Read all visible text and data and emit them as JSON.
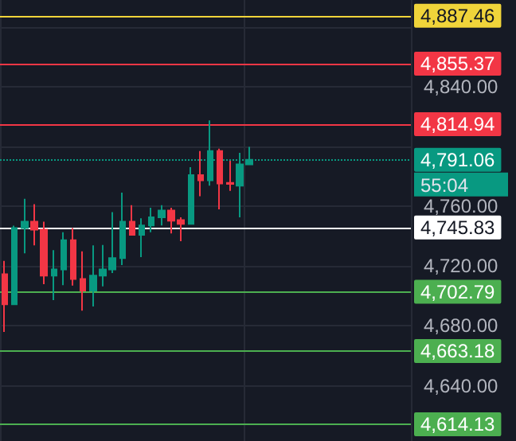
{
  "chart_data": {
    "type": "candlestick",
    "categories": [
      null,
      null,
      null,
      null,
      null,
      null,
      null,
      null,
      null,
      null,
      null,
      null,
      null,
      null,
      null,
      null,
      null,
      null,
      null,
      null,
      null,
      null,
      null,
      null,
      null,
      null,
      null,
      null,
      null,
      null,
      null,
      null,
      null,
      null,
      null,
      null,
      null,
      null,
      null,
      null,
      null,
      null
    ],
    "ohlc": [
      [
        4714.6,
        4723.5,
        4676.0,
        4694.4
      ],
      [
        4694.4,
        4747.0,
        4694.0,
        4745.5
      ],
      [
        4745.5,
        4765.0,
        4728.5,
        4749.7
      ],
      [
        4749.7,
        4761.4,
        4733.8,
        4744.4
      ],
      [
        4744.4,
        4749.7,
        4707.9,
        4713.6
      ],
      [
        4713.6,
        4730.6,
        4697.3,
        4717.8
      ],
      [
        4717.8,
        4742.6,
        4707.2,
        4737.3
      ],
      [
        4737.3,
        4745.5,
        4707.0,
        4711.4
      ],
      [
        4711.4,
        4729.9,
        4690.2,
        4703.6
      ],
      [
        4703.6,
        4733.8,
        4693.0,
        4713.6
      ],
      [
        4713.6,
        4734.1,
        4706.5,
        4717.8
      ],
      [
        4717.8,
        4756.1,
        4715.3,
        4725.3
      ],
      [
        4725.3,
        4769.2,
        4720.7,
        4749.7
      ],
      [
        4749.7,
        4760.7,
        4740.9,
        4740.9
      ],
      [
        4740.9,
        4751.9,
        4726.0,
        4747.2
      ],
      [
        4747.2,
        4759.0,
        4742.6,
        4752.6
      ],
      [
        4752.6,
        4760.7,
        4747.2,
        4757.2
      ],
      [
        4757.2,
        4759.0,
        4741.9,
        4750.4
      ],
      [
        4750.8,
        4752.6,
        4736.6,
        4748.3
      ],
      [
        4748.3,
        4786.2,
        4748.3,
        4780.9
      ],
      [
        4780.9,
        4796.9,
        4766.8,
        4777.4
      ],
      [
        4777.4,
        4817.4,
        4773.8,
        4796.9
      ],
      [
        4796.9,
        4798.6,
        4757.9,
        4775.3
      ],
      [
        4775.6,
        4790.5,
        4770.3,
        4775.0
      ],
      [
        4773.8,
        4795.8,
        4752.6,
        4788.0
      ],
      [
        4788.0,
        4799.7,
        4788.0,
        4791.1
      ],
      null,
      null,
      null,
      null,
      null,
      null,
      null,
      null,
      null,
      null,
      null,
      null,
      null,
      null,
      null,
      null
    ],
    "colors": [
      "#f23645",
      "#089981",
      "#089981",
      "#f23645",
      "#f23645",
      "#089981",
      "#089981",
      "#f23645",
      "#f23645",
      "#089981",
      "#089981",
      "#089981",
      "#089981",
      "#f23645",
      "#089981",
      "#089981",
      "#089981",
      "#f23645",
      "#f23645",
      "#089981",
      "#f23645",
      "#089981",
      "#f23645",
      "#f23645",
      "#089981",
      "#089981",
      null,
      null,
      null,
      null,
      null,
      null,
      null,
      null,
      null,
      null,
      null,
      null,
      null,
      null,
      null,
      null
    ],
    "ylim": [
      4603,
      4898
    ],
    "yticks": [
      {
        "value": 4640,
        "label": "4,640.00"
      },
      {
        "value": 4680,
        "label": "4,680.00"
      },
      {
        "value": 4720,
        "label": "4,720.00"
      },
      {
        "value": 4760,
        "label": "4,760.00"
      },
      {
        "value": 4800,
        "label": null
      },
      {
        "value": 4840,
        "label": "4,840.00"
      },
      {
        "value": 4880,
        "label": null
      }
    ],
    "grid": true,
    "ref_lines": [
      {
        "axis": "y",
        "value": 4887.46,
        "label": "4,887.46",
        "color": "#f0d43a"
      },
      {
        "axis": "y",
        "value": 4855.37,
        "label": "4,855.37",
        "color": "#f23645"
      },
      {
        "axis": "y",
        "value": 4814.94,
        "label": "4,814.94",
        "color": "#f23645"
      },
      {
        "axis": "y",
        "value": 4791.06,
        "label": "4,791.06",
        "color": "#089981",
        "line_style": "dotted"
      },
      {
        "axis": "y",
        "value": 4745.83,
        "label": "4,745.83",
        "color": "#ffffff"
      },
      {
        "axis": "y",
        "value": 4702.79,
        "label": "4,702.79",
        "color": "#4caf50"
      },
      {
        "axis": "y",
        "value": 4663.18,
        "label": "4,663.18",
        "color": "#4caf50"
      },
      {
        "axis": "y",
        "value": 4614.13,
        "label": "4,614.13",
        "color": "#4caf50"
      }
    ],
    "annotations": [
      "55:04"
    ]
  }
}
